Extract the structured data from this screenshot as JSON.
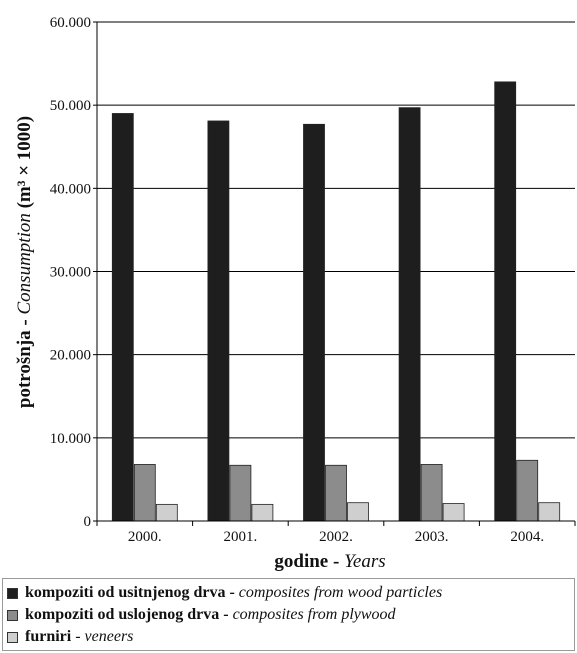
{
  "chart_data": {
    "type": "bar",
    "categories": [
      "2000.",
      "2001.",
      "2002.",
      "2003.",
      "2004."
    ],
    "series": [
      {
        "name": "kompoziti od usitnjenog drva - composites from wood particles",
        "name_bold": "kompoziti od usitnjenog drva -",
        "name_italic": "composites from wood particles",
        "color": "#1e1e1e",
        "values": [
          49000,
          48100,
          47700,
          49700,
          52800
        ]
      },
      {
        "name": "kompoziti od uslojenog drva - composites from plywood",
        "name_bold": "kompoziti od uslojenog drva -",
        "name_italic": "composites from plywood",
        "color": "#8c8c8c",
        "values": [
          6800,
          6700,
          6700,
          6800,
          7300
        ]
      },
      {
        "name": "furniri - veneers",
        "name_bold": "furniri",
        "name_italic": "veneers",
        "color": "#cfcfcf",
        "values": [
          2000,
          2000,
          2200,
          2100,
          2200
        ]
      }
    ],
    "yticks": [
      "0",
      "10.000",
      "20.000",
      "30.000",
      "40.000",
      "50.000",
      "60.000"
    ],
    "ylim": [
      0,
      60000
    ],
    "grid": true,
    "legend": "bottom",
    "xlabel_bold": "godine -",
    "xlabel_italic": "Years",
    "ylabel_bold": "potrošnja -",
    "ylabel_italic": "Consumption",
    "ylabel_unit": "(m³ × 1000)"
  }
}
